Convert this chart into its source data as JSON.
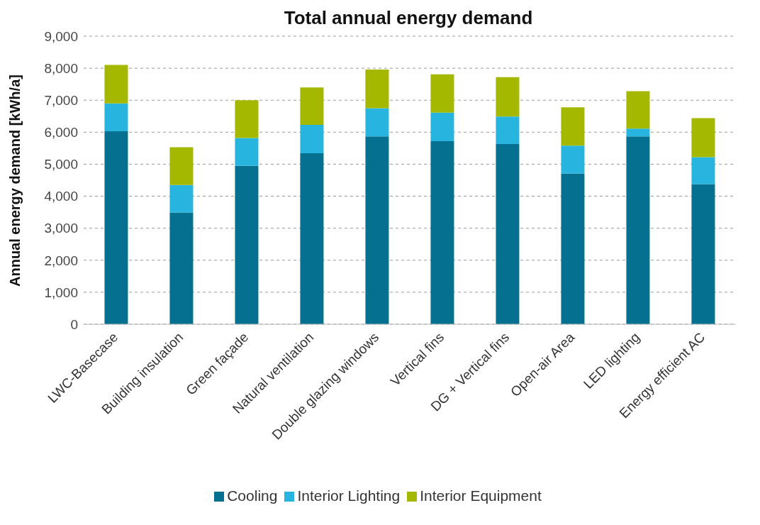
{
  "chart_data": {
    "type": "bar",
    "title": "Total annual energy demand",
    "ylabel": "Annual energy demand [kWh/a]",
    "categories": [
      "LWC-Basecase",
      "Building insulation",
      "Green façade",
      "Natural ventilation",
      "Double glazing windows",
      "Vertical fins",
      "DG + Vertical fins",
      "Open-air Area",
      "LED lighting",
      "Energy efficient AC"
    ],
    "series": [
      {
        "name": "Cooling",
        "color": "#05708f",
        "values": [
          6030,
          3490,
          4950,
          5340,
          5870,
          5720,
          5630,
          4710,
          5870,
          4380
        ]
      },
      {
        "name": "Interior Lighting",
        "color": "#27b5e0",
        "values": [
          870,
          860,
          870,
          890,
          880,
          890,
          860,
          870,
          240,
          840
        ]
      },
      {
        "name": "Interior Equipment",
        "color": "#a5b800",
        "values": [
          1200,
          1180,
          1180,
          1170,
          1210,
          1200,
          1230,
          1200,
          1170,
          1220
        ]
      }
    ],
    "stacked": true,
    "ylim": [
      0,
      9000
    ],
    "yticks": [
      {
        "value": 0,
        "label": "0"
      },
      {
        "value": 1000,
        "label": "1,000"
      },
      {
        "value": 2000,
        "label": "2,000"
      },
      {
        "value": 3000,
        "label": "3,000"
      },
      {
        "value": 4000,
        "label": "4,000"
      },
      {
        "value": 5000,
        "label": "5,000"
      },
      {
        "value": 6000,
        "label": "6,000"
      },
      {
        "value": 7000,
        "label": "7,000"
      },
      {
        "value": 8000,
        "label": "8,000"
      },
      {
        "value": 9000,
        "label": "9,000"
      }
    ],
    "grid": "y",
    "legend": "bottom"
  }
}
